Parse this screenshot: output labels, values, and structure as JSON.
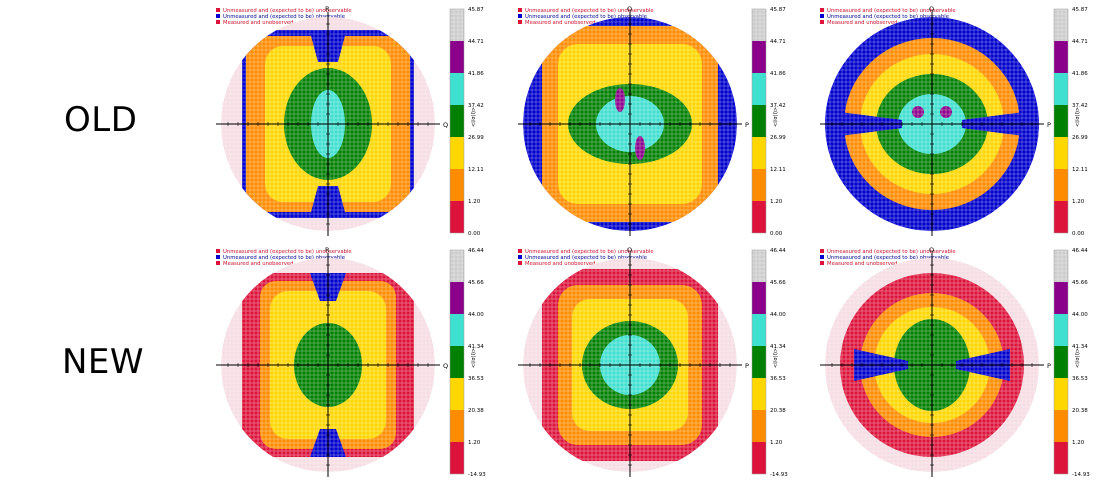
{
  "rows": [
    {
      "label": "OLD",
      "scale_ticks": [
        "45.87",
        "44.71",
        "41.86",
        "37.42",
        "26.99",
        "12.11",
        "1.20",
        "0.00"
      ]
    },
    {
      "label": "NEW",
      "scale_ticks": [
        "46.44",
        "45.66",
        "44.00",
        "41.34",
        "36.53",
        "20.38",
        "1.20",
        "-14.93"
      ]
    }
  ],
  "legend": [
    {
      "text": "Unmeasured and (expected to be) unobservable",
      "color": "#dc143c"
    },
    {
      "text": "Unmeasured and (expected to be) observable",
      "color": "#0000cd"
    },
    {
      "text": "Measured and unobserved",
      "color": "#dc143c"
    }
  ],
  "panels": [
    {
      "row": 0,
      "vertical_axis": "R",
      "horizontal_axis": "Q",
      "scale_title": "<I/σ(I)>"
    },
    {
      "row": 0,
      "vertical_axis": "Q",
      "horizontal_axis": "P",
      "scale_title": "<I/σ(I)>"
    },
    {
      "row": 0,
      "vertical_axis": "Q",
      "horizontal_axis": "P",
      "scale_title": "<I/σ(I)>"
    },
    {
      "row": 1,
      "vertical_axis": "R",
      "horizontal_axis": "Q",
      "scale_title": "<I/σ(I)>"
    },
    {
      "row": 1,
      "vertical_axis": "Q",
      "horizontal_axis": "P",
      "scale_title": "<I/σ(I)>"
    },
    {
      "row": 1,
      "vertical_axis": "Q",
      "horizontal_axis": "P",
      "scale_title": "<I/σ(I)>"
    }
  ],
  "colors": {
    "scale": [
      "#cccccc",
      "#8b008b",
      "#40e0d0",
      "#008000",
      "#ffd700",
      "#ff8c00",
      "#dc143c"
    ],
    "disk_bg": "#f5dde3",
    "blue": "#0000cd",
    "axis": "#000000"
  }
}
